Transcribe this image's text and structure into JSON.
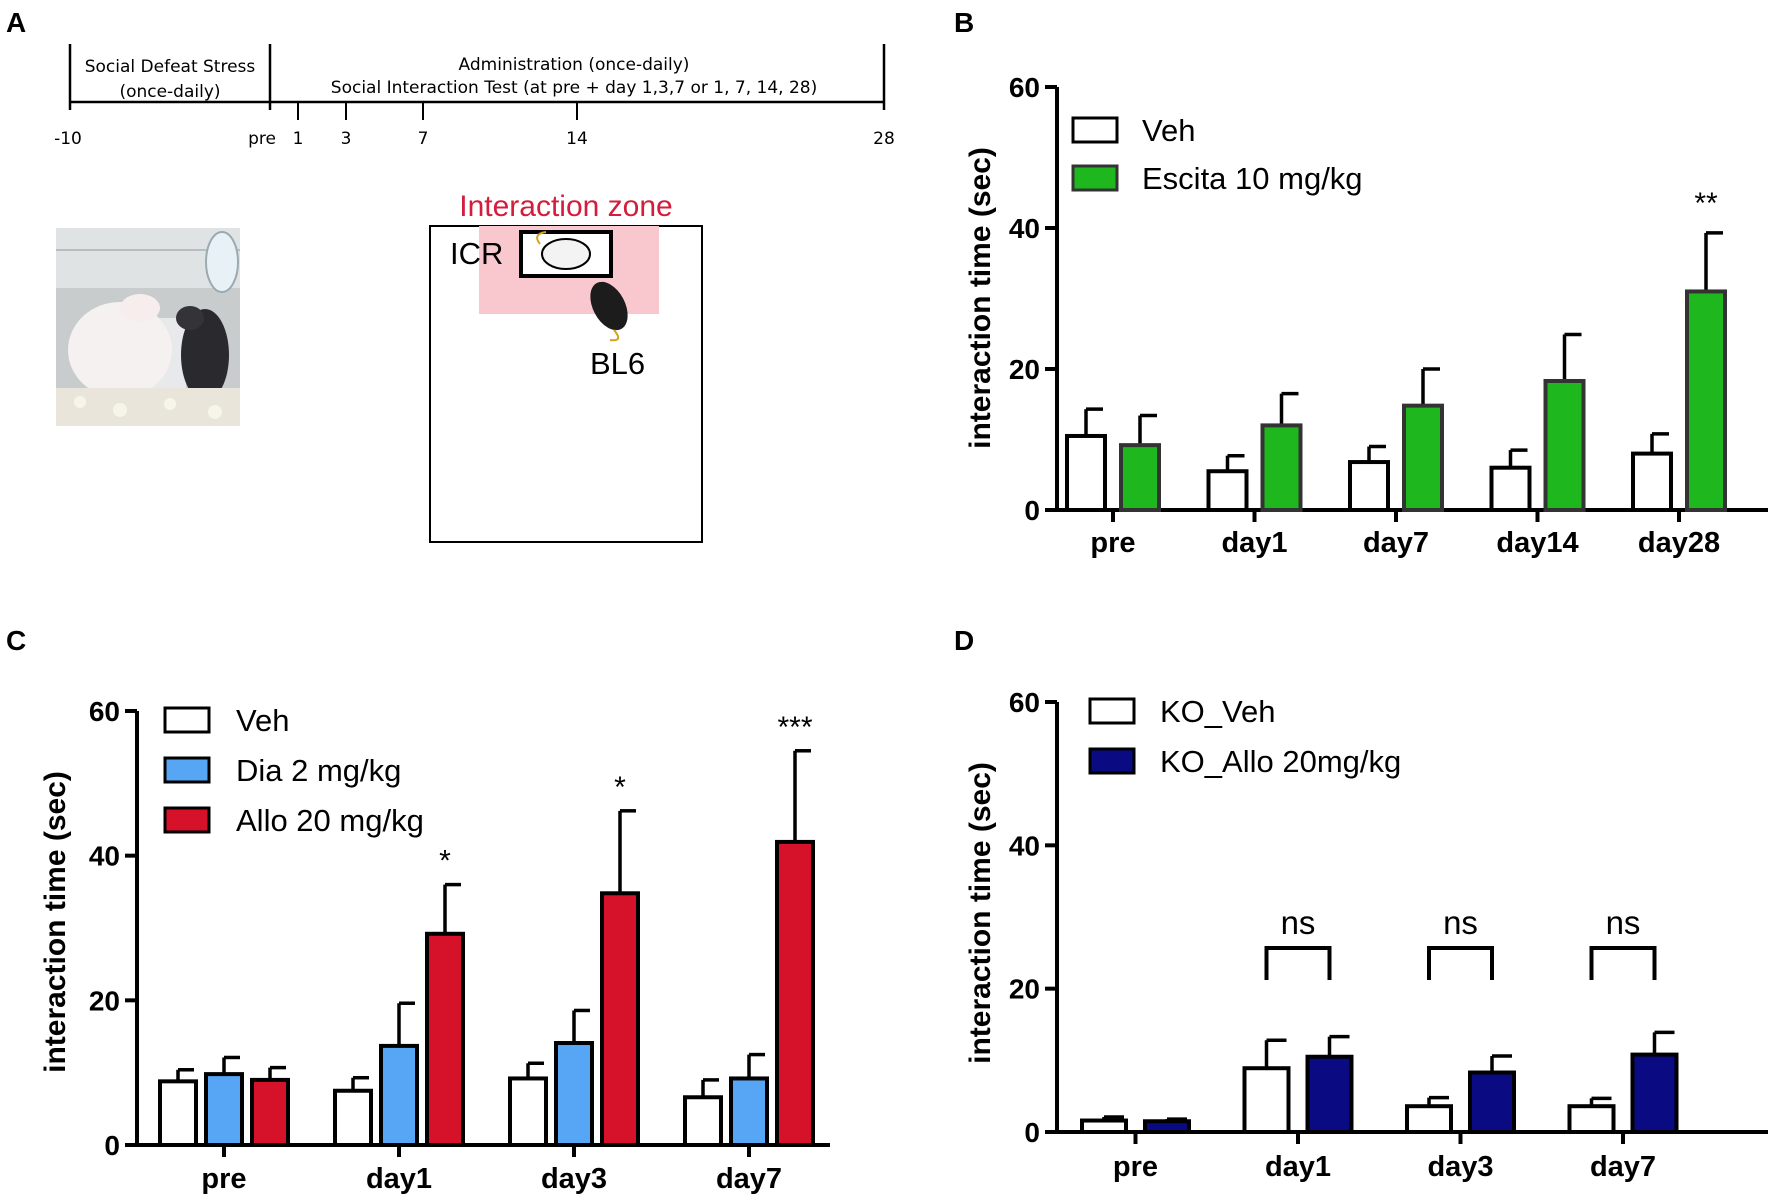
{
  "panel_labels": {
    "a": "A",
    "b": "B",
    "c": "C",
    "d": "D"
  },
  "timeline": {
    "left_label_1": "Social Defeat Stress",
    "left_label_2": "(once-daily)",
    "right_label_1": "Administration (once-daily)",
    "right_label_2": "Social Interaction Test (at pre + day 1,3,7 or 1, 7, 14, 28)",
    "ticks": [
      "-10",
      "pre",
      "1",
      "3",
      "7",
      "14",
      "28"
    ]
  },
  "arena": {
    "zone_label": "Interaction  zone",
    "stranger_label": "ICR",
    "subject_label": "BL6"
  },
  "colors": {
    "veh": "#ffffff",
    "escita": "#1eb81e",
    "dia": "#56a6f5",
    "allo": "#d6112a",
    "ko_allo": "#0a0a82",
    "zone": "#f9c8ce"
  },
  "chart_data": [
    {
      "panel": "B",
      "type": "bar",
      "ylabel": "interaction time (sec)",
      "ylim": [
        0,
        60
      ],
      "yticks": [
        "0",
        "20",
        "40",
        "60"
      ],
      "categories": [
        "pre",
        "day1",
        "day7",
        "day14",
        "day28"
      ],
      "series": [
        {
          "name": "Veh",
          "values": [
            10.5,
            5.5,
            6.8,
            6.0,
            8.0
          ],
          "errors": [
            3.8,
            2.2,
            2.2,
            2.5,
            2.8
          ]
        },
        {
          "name": "Escita 10 mg/kg",
          "values": [
            9.2,
            12.0,
            14.8,
            18.3,
            31.0
          ],
          "errors": [
            4.2,
            4.5,
            5.2,
            6.6,
            8.3
          ]
        }
      ],
      "annotations": [
        {
          "category": "day28",
          "text": "**"
        }
      ]
    },
    {
      "panel": "C",
      "type": "bar",
      "ylabel": "interaction time (sec)",
      "ylim": [
        0,
        60
      ],
      "yticks": [
        "0",
        "20",
        "40",
        "60"
      ],
      "categories": [
        "pre",
        "day1",
        "day3",
        "day7"
      ],
      "series": [
        {
          "name": "Veh",
          "values": [
            8.8,
            7.5,
            9.2,
            6.6
          ],
          "errors": [
            1.6,
            1.8,
            2.1,
            2.4
          ]
        },
        {
          "name": "Dia 2 mg/kg",
          "values": [
            9.8,
            13.7,
            14.1,
            9.2
          ],
          "errors": [
            2.3,
            5.9,
            4.5,
            3.3
          ]
        },
        {
          "name": "Allo 20 mg/kg",
          "values": [
            9.0,
            29.2,
            34.8,
            41.9
          ],
          "errors": [
            1.7,
            6.8,
            11.4,
            12.6
          ]
        }
      ],
      "annotations": [
        {
          "category": "day1",
          "text": "*"
        },
        {
          "category": "day3",
          "text": "*"
        },
        {
          "category": "day7",
          "text": "***"
        }
      ]
    },
    {
      "panel": "D",
      "type": "bar",
      "ylabel": "interaction time (sec)",
      "ylim": [
        0,
        60
      ],
      "yticks": [
        "0",
        "20",
        "40",
        "60"
      ],
      "categories": [
        "pre",
        "day1",
        "day3",
        "day7"
      ],
      "series": [
        {
          "name": "KO_Veh",
          "values": [
            1.6,
            8.9,
            3.6,
            3.6
          ],
          "errors": [
            0.5,
            3.9,
            1.2,
            1.1
          ]
        },
        {
          "name": "KO_Allo 20mg/kg",
          "values": [
            1.5,
            10.5,
            8.3,
            10.8
          ],
          "errors": [
            0.3,
            2.8,
            2.3,
            3.1
          ]
        }
      ],
      "annotations": [
        {
          "category": "day1",
          "text": "ns"
        },
        {
          "category": "day3",
          "text": "ns"
        },
        {
          "category": "day7",
          "text": "ns"
        }
      ]
    }
  ]
}
